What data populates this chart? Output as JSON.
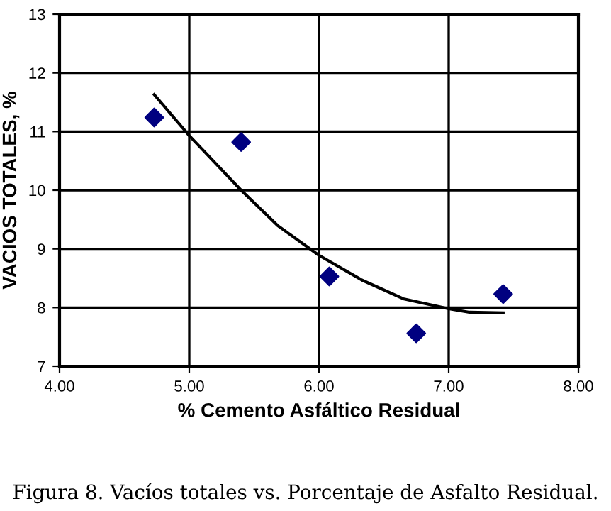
{
  "chart_data": {
    "type": "scatter",
    "xlabel": "% Cemento Asfáltico Residual",
    "ylabel": "VACIOS TOTALES, %",
    "annotations": [
      "Figura 8. Vacíos totales vs. Porcentaje de Asfalto Residual."
    ],
    "series": [
      {
        "color": "#000080",
        "marker": "diamond",
        "x": [
          4.73,
          5.4,
          6.08,
          6.75,
          7.42
        ],
        "values": [
          11.24,
          10.82,
          8.53,
          7.56,
          8.23
        ]
      },
      {
        "type": "line",
        "color": "#000000",
        "marker": "none",
        "x": [
          4.73,
          5.0,
          5.4,
          5.68,
          6.0,
          6.33,
          6.65,
          7.0,
          7.16,
          7.42
        ],
        "values": [
          11.63,
          10.93,
          10.0,
          9.4,
          8.89,
          8.47,
          8.15,
          7.98,
          7.92,
          7.91
        ]
      }
    ],
    "xlim": [
      4,
      8
    ],
    "xticks": [
      {
        "value": 4,
        "label": "4.00"
      },
      {
        "value": 5,
        "label": "5.00"
      },
      {
        "value": 6,
        "label": "6.00"
      },
      {
        "value": 7,
        "label": "7.00"
      },
      {
        "value": 8,
        "label": "8.00"
      }
    ],
    "ylim": [
      7,
      13
    ],
    "yticks": [
      7,
      8,
      9,
      10,
      11,
      12,
      13
    ],
    "grid": true,
    "legend": false
  }
}
